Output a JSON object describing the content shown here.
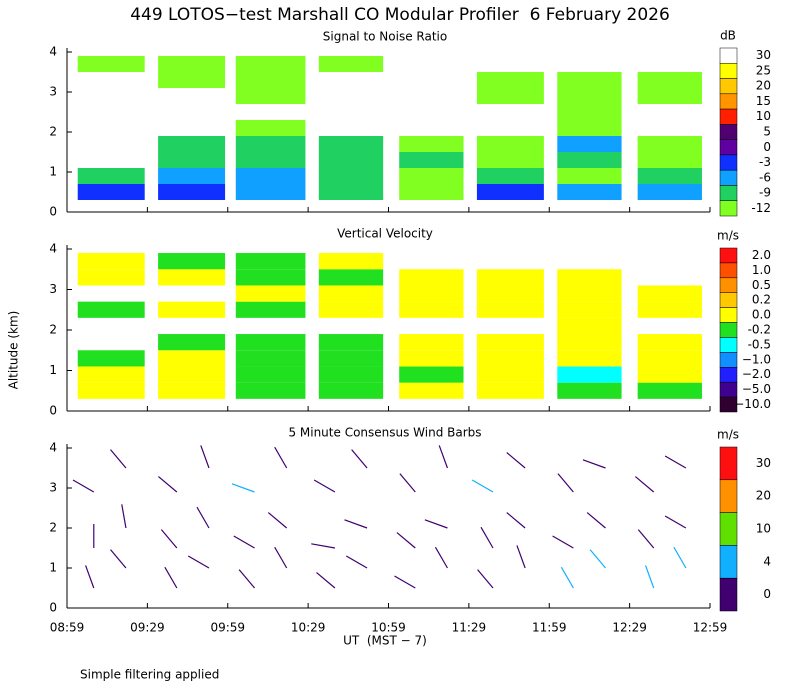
{
  "title": "449 LOTOS−test Marshall CO Modular Profiler  6 February 2026",
  "ylabel": "Altitude (km)",
  "xlabel": "UT  (MST − 7)",
  "note": "Simple filtering applied",
  "chart_data": [
    {
      "type": "heatmap",
      "title": "Signal to Noise Ratio",
      "colorbar": {
        "unit": "dB",
        "ticks": [
          30,
          25,
          20,
          15,
          10,
          5,
          0,
          -3,
          -6,
          -9,
          -12
        ],
        "colors": [
          "#ffffff",
          "#ffff00",
          "#ffc800",
          "#ff9600",
          "#ff2000",
          "#500070",
          "#6000a0",
          "#1030ff",
          "#10a0ff",
          "#20d060",
          "#80ff20"
        ]
      },
      "xlim": [
        0,
        240
      ],
      "ylim": [
        0,
        4
      ],
      "yticks": [
        0,
        1,
        2,
        3,
        4
      ],
      "ybins": [
        0.3,
        0.7,
        1.1,
        1.5,
        1.9,
        2.3,
        2.7,
        3.1,
        3.5,
        3.9
      ],
      "columns": [
        {
          "start": 4,
          "end": 29,
          "values": [
            -3,
            -9,
            null,
            null,
            null,
            null,
            null,
            null,
            -12
          ]
        },
        {
          "start": 34,
          "end": 59,
          "values": [
            -3,
            -6,
            -9,
            -9,
            null,
            null,
            null,
            -12,
            -12
          ]
        },
        {
          "start": 63,
          "end": 89,
          "values": [
            -6,
            -6,
            -9,
            -9,
            -12,
            null,
            -12,
            -12,
            -12
          ]
        },
        {
          "start": 94,
          "end": 118,
          "values": [
            -9,
            -9,
            -9,
            -9,
            null,
            null,
            null,
            null,
            -12
          ]
        },
        {
          "start": 124,
          "end": 148,
          "values": [
            -12,
            -12,
            -9,
            -12,
            null,
            null,
            null,
            null,
            null
          ]
        },
        {
          "start": 153,
          "end": 178,
          "values": [
            -3,
            -9,
            -12,
            -12,
            null,
            null,
            -12,
            -12,
            null
          ]
        },
        {
          "start": 183,
          "end": 207,
          "values": [
            -6,
            -12,
            -9,
            -6,
            -12,
            -12,
            -12,
            -12,
            null
          ]
        },
        {
          "start": 213,
          "end": 237,
          "values": [
            -6,
            -9,
            -12,
            -12,
            null,
            null,
            -12,
            -12,
            null
          ]
        }
      ]
    },
    {
      "type": "heatmap",
      "title": "Vertical Velocity",
      "colorbar": {
        "unit": "m/s",
        "ticks": [
          {
            "value": 2,
            "label": "2.0"
          },
          {
            "value": 1,
            "label": "1.0"
          },
          0.5,
          0.2,
          {
            "value": 0,
            "label": "0.0"
          },
          -0.2,
          -0.5,
          {
            "value": -1,
            "label": "−1.0"
          },
          {
            "value": -2,
            "label": "−2.0"
          },
          {
            "value": -5,
            "label": "−5.0"
          },
          {
            "value": -10,
            "label": "−10.0"
          }
        ],
        "colors": [
          "#ff1010",
          "#ff5000",
          "#ff9000",
          "#ffc800",
          "#ffff00",
          "#20e020",
          "#00ffff",
          "#1090ff",
          "#2020ff",
          "#400090",
          "#300030"
        ]
      },
      "xlim": [
        0,
        240
      ],
      "ylim": [
        0,
        4
      ],
      "yticks": [
        0,
        1,
        2,
        3,
        4
      ],
      "ybins": [
        0.3,
        0.7,
        1.1,
        1.5,
        1.9,
        2.3,
        2.7,
        3.1,
        3.5,
        3.9
      ],
      "columns": [
        {
          "start": 4,
          "end": 29,
          "values": [
            0.1,
            0.1,
            -0.1,
            null,
            null,
            -0.1,
            null,
            0.1,
            0.1
          ]
        },
        {
          "start": 34,
          "end": 59,
          "values": [
            0.1,
            0.1,
            0.1,
            -0.1,
            null,
            0.1,
            null,
            0.1,
            -0.1
          ]
        },
        {
          "start": 63,
          "end": 89,
          "values": [
            -0.1,
            -0.1,
            -0.1,
            -0.1,
            null,
            -0.1,
            0.1,
            -0.1,
            -0.1
          ]
        },
        {
          "start": 94,
          "end": 118,
          "values": [
            -0.1,
            -0.1,
            -0.1,
            -0.1,
            null,
            0.1,
            0.1,
            -0.1,
            0.1
          ]
        },
        {
          "start": 124,
          "end": 148,
          "values": [
            0.1,
            -0.1,
            0.1,
            0.1,
            null,
            0.1,
            0.1,
            0.1,
            null
          ]
        },
        {
          "start": 153,
          "end": 178,
          "values": [
            0.1,
            0.1,
            0.1,
            0.1,
            null,
            0.1,
            0.1,
            0.1,
            null
          ]
        },
        {
          "start": 183,
          "end": 207,
          "values": [
            -0.1,
            -0.4,
            0.1,
            0.1,
            0.1,
            0.1,
            0.1,
            0.1,
            null
          ]
        },
        {
          "start": 213,
          "end": 237,
          "values": [
            -0.1,
            0.1,
            0.1,
            0.1,
            null,
            0.1,
            0.1,
            null,
            null
          ]
        }
      ]
    },
    {
      "type": "barbs",
      "title": "5 Minute Consensus Wind Barbs",
      "colorbar": {
        "unit": "m/s",
        "ticks": [
          30,
          20,
          10,
          4,
          0
        ],
        "colors": [
          "#ff1010",
          "#ff9000",
          "#60e000",
          "#10b0ff",
          "#400070"
        ]
      },
      "xlim": [
        0,
        240
      ],
      "ylim": [
        0,
        4
      ],
      "yticks": [
        0,
        1,
        2,
        3,
        4
      ],
      "xticks": [
        {
          "value": 0,
          "label": "08:59"
        },
        {
          "value": 30,
          "label": "09:29"
        },
        {
          "value": 60,
          "label": "09:59"
        },
        {
          "value": 90,
          "label": "10:29"
        },
        {
          "value": 120,
          "label": "10:59"
        },
        {
          "value": 150,
          "label": "11:29"
        },
        {
          "value": 180,
          "label": "11:59"
        },
        {
          "value": 210,
          "label": "12:29"
        },
        {
          "value": 240,
          "label": "12:59"
        }
      ],
      "barbs": {
        "x": [
          10,
          22,
          10,
          22,
          10,
          22,
          41,
          53,
          41,
          53,
          41,
          53,
          70,
          82,
          70,
          82,
          70,
          82,
          100,
          112,
          100,
          112,
          100,
          112,
          130,
          142,
          130,
          142,
          130,
          142,
          159,
          171,
          159,
          171,
          159,
          171,
          189,
          201,
          189,
          201,
          189,
          201,
          219,
          231,
          219,
          231,
          219,
          231
        ],
        "y": [
          0.5,
          1.0,
          1.5,
          2.0,
          2.9,
          3.5,
          0.5,
          1.0,
          1.5,
          2.0,
          2.9,
          3.5,
          0.5,
          1.0,
          1.5,
          2.0,
          2.9,
          3.5,
          0.5,
          1.0,
          1.5,
          2.0,
          2.9,
          3.5,
          0.5,
          1.0,
          1.5,
          2.0,
          2.9,
          3.5,
          0.5,
          1.0,
          1.5,
          2.0,
          2.9,
          3.5,
          0.5,
          1.0,
          1.5,
          2.0,
          2.9,
          3.5,
          0.5,
          1.0,
          1.5,
          2.0,
          2.9,
          3.5
        ],
        "speed": [
          2,
          3,
          2,
          2,
          3,
          3,
          3,
          2,
          3,
          2,
          3,
          2,
          3,
          3,
          2,
          3,
          4,
          3,
          2,
          3,
          3,
          2,
          2,
          3,
          2,
          3,
          2,
          3,
          3,
          3,
          3,
          3,
          2,
          3,
          5,
          3,
          5,
          6,
          3,
          3,
          3,
          2,
          6,
          5,
          3,
          3,
          2,
          3
        ],
        "direction": [
          340,
          320,
          0,
          350,
          300,
          320,
          330,
          300,
          320,
          330,
          310,
          340,
          320,
          330,
          300,
          310,
          290,
          330,
          310,
          300,
          280,
          290,
          300,
          320,
          300,
          330,
          310,
          290,
          320,
          340,
          320,
          340,
          330,
          310,
          300,
          310,
          330,
          320,
          300,
          310,
          320,
          290,
          340,
          330,
          320,
          300,
          310,
          300
        ]
      }
    }
  ]
}
